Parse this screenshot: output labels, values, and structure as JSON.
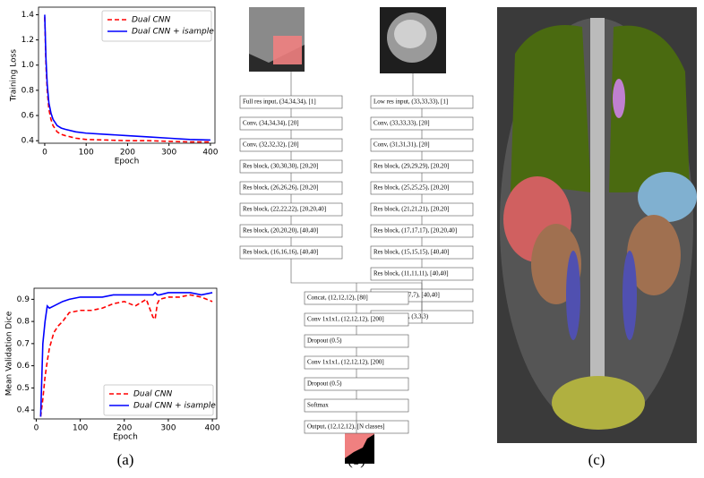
{
  "chart_data": [
    {
      "type": "line",
      "xlabel": "Epoch",
      "ylabel": "Training Loss",
      "legend": "upper right",
      "xlim": [
        -15,
        411
      ],
      "ylim": [
        0.38,
        1.46
      ],
      "xticks": [
        0,
        100,
        200,
        300,
        400
      ],
      "yticks": [
        0.4,
        0.6,
        0.8,
        {
          "value": 1,
          "label": "1.0"
        },
        1.2,
        1.4
      ],
      "x": [
        0,
        3,
        6,
        10,
        15,
        20,
        30,
        40,
        50,
        75,
        100,
        150,
        200,
        250,
        300,
        350,
        400
      ],
      "series": [
        {
          "name": "Dual CNN",
          "color": "#ff0000",
          "linestyle": "dashed",
          "values": [
            1.38,
            1.0,
            0.8,
            0.65,
            0.57,
            0.52,
            0.47,
            0.45,
            0.44,
            0.42,
            0.41,
            0.405,
            0.4,
            0.4,
            0.395,
            0.39,
            0.39
          ]
        },
        {
          "name": "Dual CNN + isample",
          "color": "#0000ff",
          "linestyle": "solid",
          "values": [
            1.4,
            1.05,
            0.85,
            0.7,
            0.62,
            0.57,
            0.52,
            0.5,
            0.49,
            0.47,
            0.46,
            0.45,
            0.44,
            0.43,
            0.42,
            0.41,
            0.405
          ]
        }
      ]
    },
    {
      "type": "line",
      "xlabel": "Epoch",
      "ylabel": "Mean Validation Dice",
      "legend": "lower right",
      "xlim": [
        -5,
        410
      ],
      "ylim": [
        0.36,
        0.95
      ],
      "xticks": [
        0,
        100,
        200,
        300,
        400
      ],
      "yticks": [
        0.4,
        0.5,
        0.6,
        0.7,
        0.8,
        0.9
      ],
      "x": [
        10,
        15,
        20,
        25,
        30,
        40,
        50,
        60,
        75,
        100,
        125,
        150,
        175,
        200,
        225,
        250,
        265,
        270,
        275,
        280,
        300,
        325,
        350,
        375,
        400
      ],
      "series": [
        {
          "name": "Dual CNN",
          "color": "#ff0000",
          "linestyle": "dashed",
          "values": [
            0.37,
            0.45,
            0.55,
            0.62,
            0.68,
            0.75,
            0.78,
            0.8,
            0.84,
            0.85,
            0.85,
            0.86,
            0.88,
            0.89,
            0.87,
            0.9,
            0.82,
            0.81,
            0.88,
            0.9,
            0.91,
            0.91,
            0.92,
            0.91,
            0.89
          ]
        },
        {
          "name": "Dual CNN + isample",
          "color": "#0000ff",
          "linestyle": "solid",
          "values": [
            0.37,
            0.7,
            0.8,
            0.87,
            0.86,
            0.87,
            0.88,
            0.89,
            0.9,
            0.91,
            0.91,
            0.91,
            0.92,
            0.92,
            0.92,
            0.92,
            0.92,
            0.93,
            0.92,
            0.92,
            0.93,
            0.93,
            0.93,
            0.92,
            0.93
          ]
        }
      ]
    }
  ],
  "diagram": {
    "left": [
      "Full res input, (34,34,34), [1]",
      "Conv, (34,34,34), [20]",
      "Conv, (32,32,32), [20]",
      "Res block, (30,30,30), [20,20]",
      "Res block, (26,26,26), [20,20]",
      "Res block, (22,22,22), [20,20,40]",
      "Res block, (20,20,20), [40,40]",
      "Res block, (16,16,16), [40,40]"
    ],
    "right": [
      "Low res input, (33,33,33), [1]",
      "Conv, (33,33,33), [20]",
      "Conv, (31,31,31), [20]",
      "Res block, (29,29,29), [20,20]",
      "Res block, (25,25,25), [20,20]",
      "Res block, (21,21,21), [20,20]",
      "Res block, (17,17,17), [20,20,40]",
      "Res block, (15,15,15), [40,40]",
      "Res block, (11,11,11), [40,40]",
      "Res block, (7,7,7), [40,40]",
      "Upsample x 4, (3,3,3)"
    ],
    "merged": [
      "Concat, (12,12,12), [80]",
      "Conv 1x1x1, (12,12,12), [200]",
      "Dropout (0.5)",
      "Conv 1x1x1, (12,12,12), [200]",
      "Dropout (0.5)",
      "Softmax",
      "Output, (12,12,12), [N classes]"
    ]
  },
  "captions": [
    "(a)",
    "(b)",
    "(c)"
  ]
}
